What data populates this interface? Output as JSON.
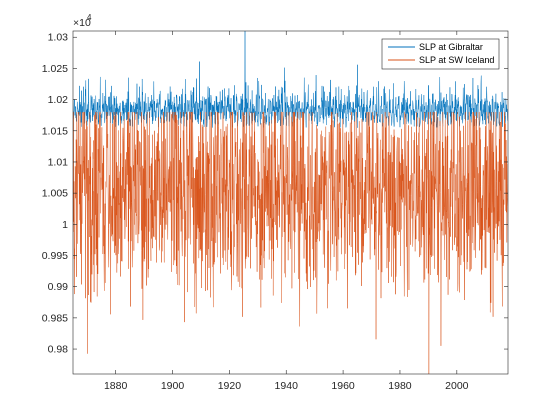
{
  "chart_data": {
    "type": "line",
    "title": "",
    "xlabel": "",
    "ylabel": "",
    "y_exponent_label": "×10",
    "y_exponent_power": "4",
    "xlim": [
      1865,
      2018
    ],
    "ylim": [
      0.976,
      1.031
    ],
    "x_ticks": [
      1880,
      1900,
      1920,
      1940,
      1960,
      1980,
      2000
    ],
    "x_tick_labels": [
      "1880",
      "1900",
      "1920",
      "1940",
      "1960",
      "1980",
      "2000"
    ],
    "y_ticks": [
      0.98,
      0.985,
      0.99,
      0.995,
      1.0,
      1.005,
      1.01,
      1.015,
      1.02,
      1.025,
      1.03
    ],
    "y_tick_labels": [
      "0.98",
      "0.985",
      "0.99",
      "0.995",
      "1",
      "1.005",
      "1.01",
      "1.015",
      "1.02",
      "1.025",
      "1.03"
    ],
    "grid": false,
    "legend_position": "top-right",
    "sampling": "monthly",
    "series": [
      {
        "name": "SLP at Gibraltar",
        "color": "#0072BD",
        "mean": 1.018,
        "typical_min": 1.0145,
        "typical_max": 1.0235,
        "max": 1.031,
        "max_at": 1925.5
      },
      {
        "name": "SLP at SW Iceland",
        "color": "#D95319",
        "mean": 1.006,
        "typical_min": 0.985,
        "typical_max": 1.0175,
        "min": 0.976,
        "min_at": 1990.2
      }
    ]
  }
}
